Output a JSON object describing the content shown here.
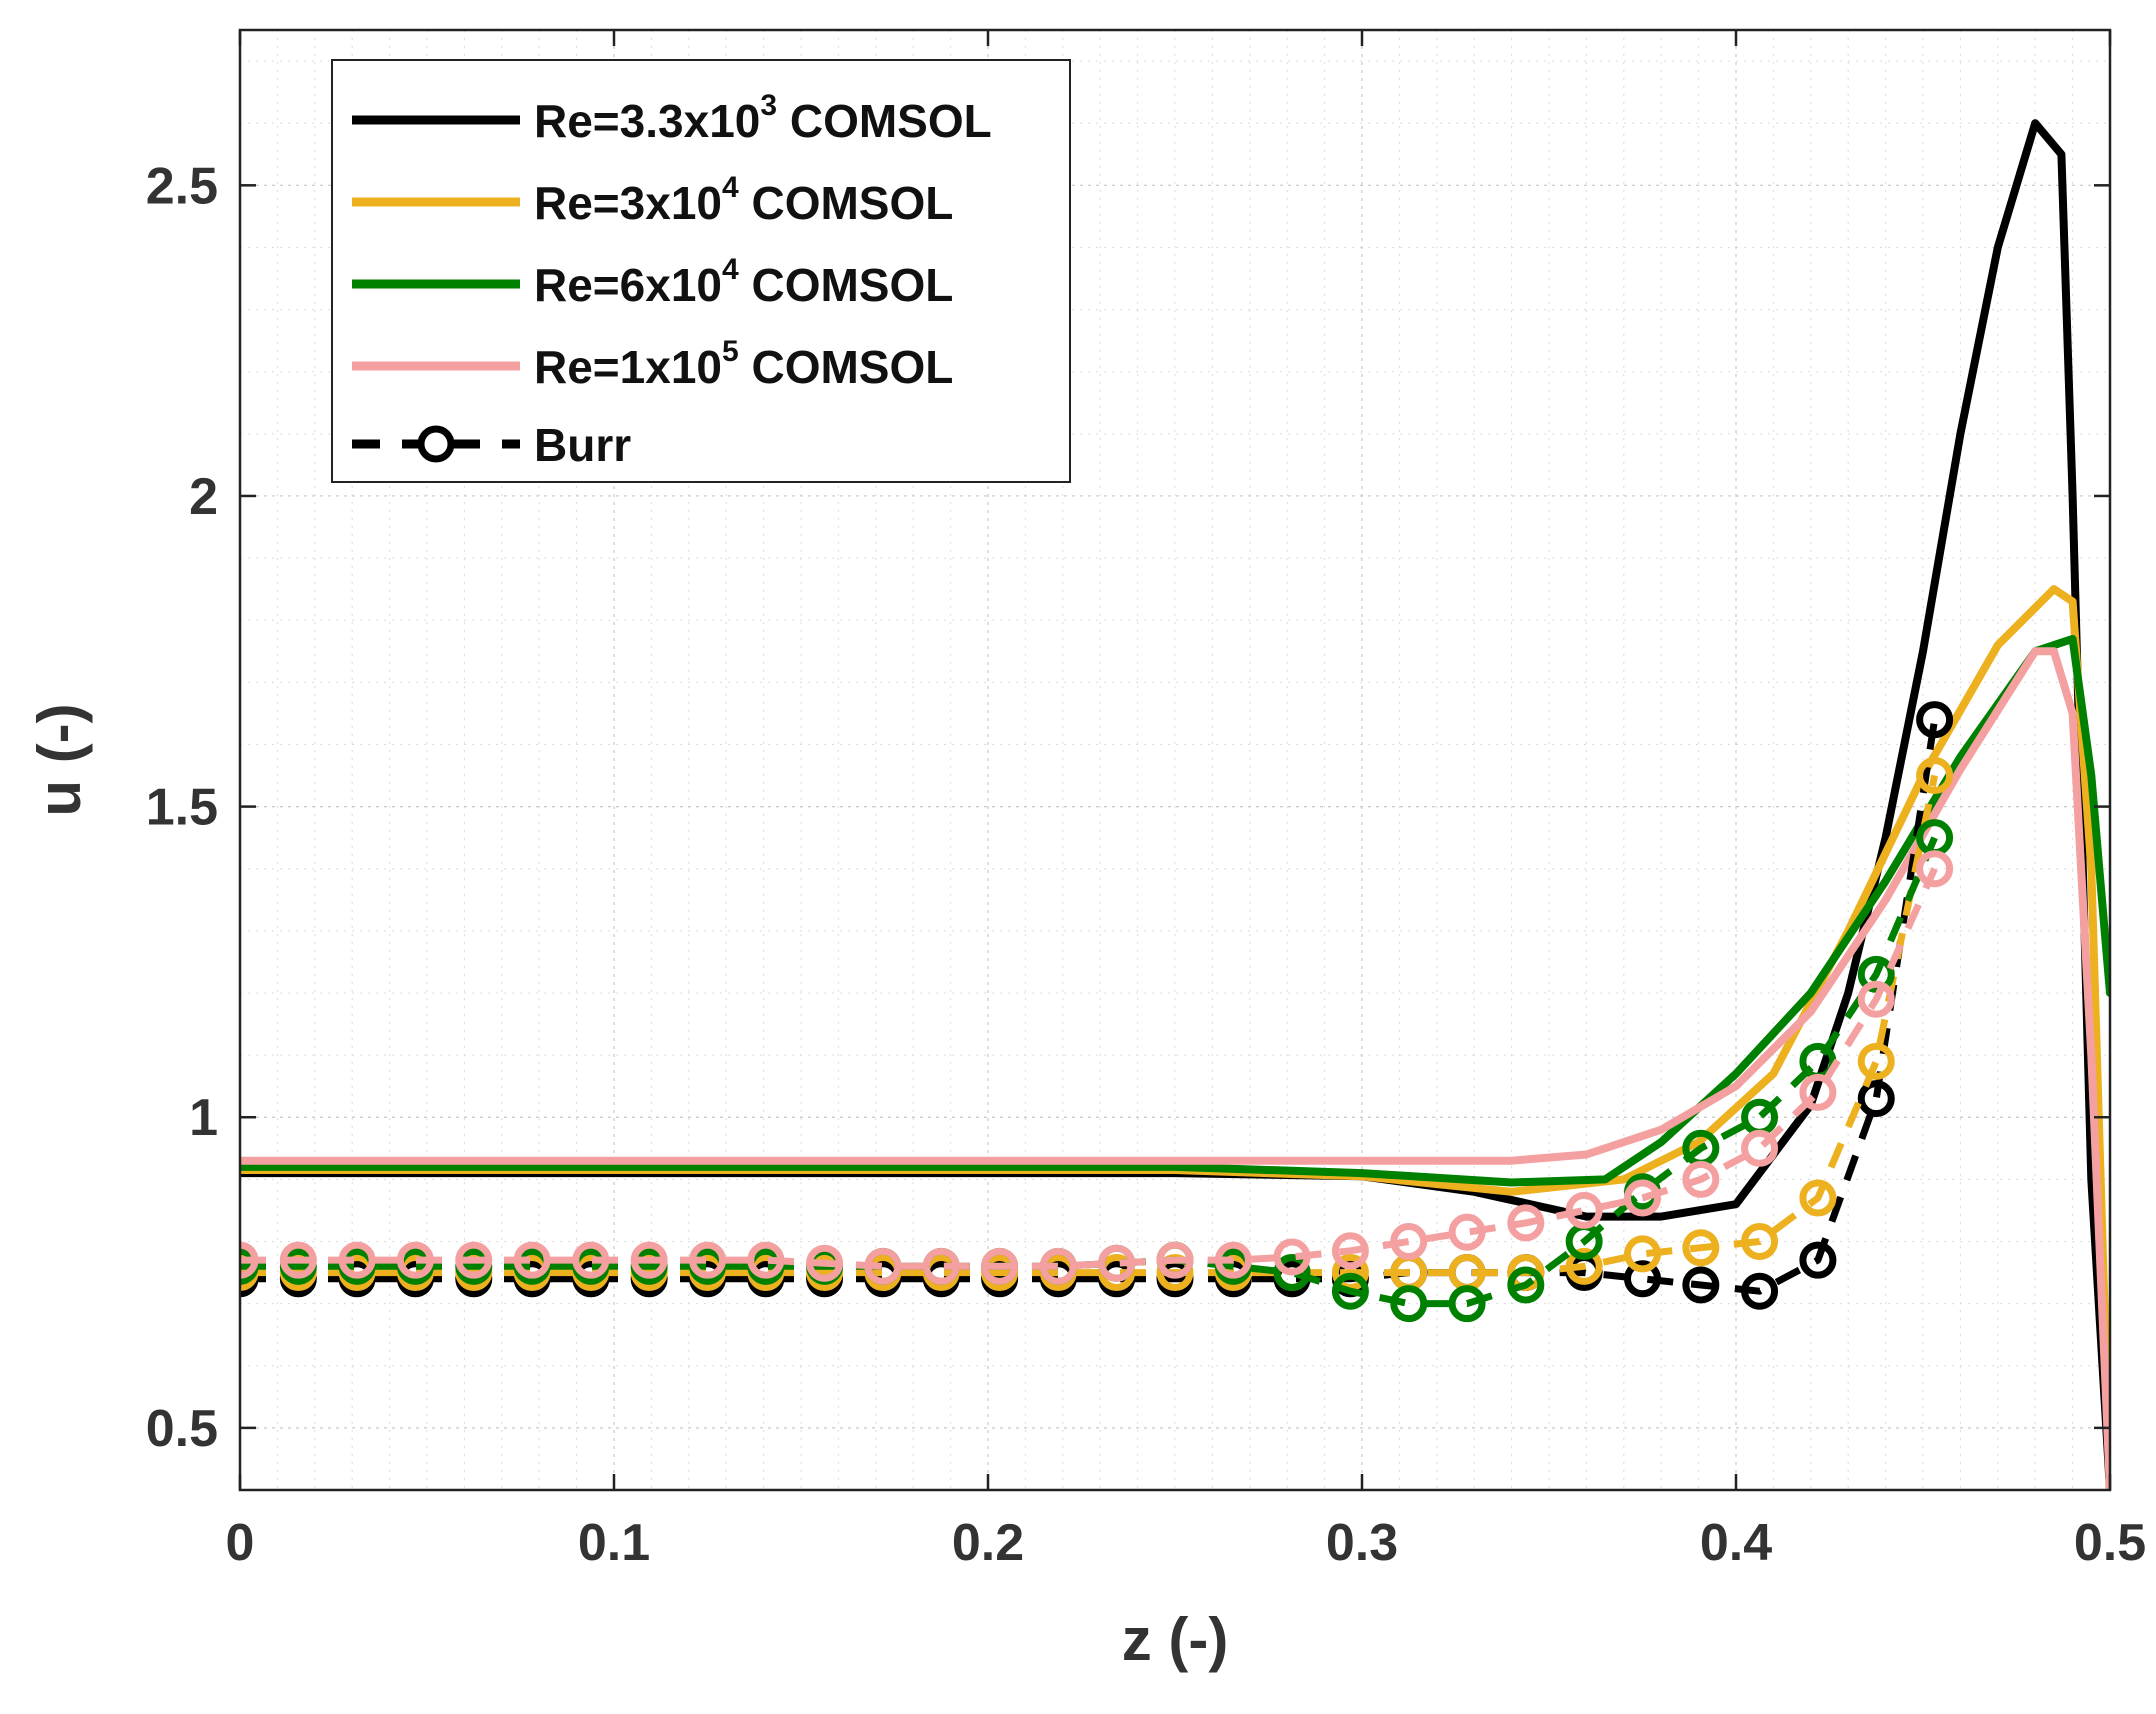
{
  "chart_data": {
    "type": "line",
    "xlabel": "z (-)",
    "ylabel": "u (-)",
    "xlim": [
      0,
      0.5
    ],
    "ylim": [
      0.4,
      2.75
    ],
    "grid": true,
    "legend_position": "top-left",
    "x_ticks": [
      0,
      0.1,
      0.2,
      0.3,
      0.4,
      0.5
    ],
    "x_tick_labels": [
      "0",
      "0.1",
      "0.2",
      "0.3",
      "0.4",
      "0.5"
    ],
    "y_ticks": [
      0.5,
      1,
      1.5,
      2,
      2.5
    ],
    "y_tick_labels": [
      "0.5",
      "1",
      "1.5",
      "2",
      "2.5"
    ],
    "series": [
      {
        "name": "Re=3.3x10^3 COMSOL",
        "legend": {
          "prefix": "Re=3.3x10",
          "sup": "3",
          "suffix": " COMSOL"
        },
        "color": "#000000",
        "style": "solid",
        "x": [
          0,
          0.05,
          0.1,
          0.15,
          0.2,
          0.25,
          0.3,
          0.33,
          0.36,
          0.38,
          0.4,
          0.42,
          0.43,
          0.44,
          0.45,
          0.46,
          0.47,
          0.48,
          0.487,
          0.49,
          0.495,
          0.5
        ],
        "y": [
          0.91,
          0.91,
          0.91,
          0.91,
          0.91,
          0.91,
          0.905,
          0.88,
          0.84,
          0.84,
          0.86,
          1.02,
          1.2,
          1.45,
          1.75,
          2.1,
          2.4,
          2.6,
          2.55,
          2.0,
          0.9,
          0.4
        ]
      },
      {
        "name": "Re=3x10^4 COMSOL",
        "legend": {
          "prefix": "Re=3x10",
          "sup": "4",
          "suffix": " COMSOL"
        },
        "color": "#EDB120",
        "style": "solid",
        "x": [
          0,
          0.05,
          0.1,
          0.15,
          0.2,
          0.25,
          0.3,
          0.34,
          0.37,
          0.39,
          0.41,
          0.43,
          0.45,
          0.47,
          0.485,
          0.49,
          0.495,
          0.5
        ],
        "y": [
          0.915,
          0.915,
          0.915,
          0.915,
          0.915,
          0.915,
          0.905,
          0.88,
          0.9,
          0.96,
          1.07,
          1.3,
          1.55,
          1.76,
          1.85,
          1.83,
          1.4,
          0.4
        ]
      },
      {
        "name": "Re=6x10^4 COMSOL",
        "legend": {
          "prefix": "Re=6x10",
          "sup": "4",
          "suffix": " COMSOL"
        },
        "color": "#008000",
        "style": "solid",
        "x": [
          0,
          0.05,
          0.1,
          0.15,
          0.2,
          0.25,
          0.3,
          0.34,
          0.365,
          0.38,
          0.4,
          0.42,
          0.44,
          0.46,
          0.48,
          0.49,
          0.495,
          0.5
        ],
        "y": [
          0.92,
          0.92,
          0.92,
          0.92,
          0.92,
          0.92,
          0.91,
          0.895,
          0.9,
          0.96,
          1.07,
          1.2,
          1.38,
          1.58,
          1.75,
          1.77,
          1.55,
          1.2
        ]
      },
      {
        "name": "Re=1x10^5 COMSOL",
        "legend": {
          "prefix": "Re=1x10",
          "sup": "5",
          "suffix": " COMSOL"
        },
        "color": "#F4A0A0",
        "style": "solid",
        "x": [
          0,
          0.05,
          0.1,
          0.15,
          0.2,
          0.25,
          0.3,
          0.34,
          0.36,
          0.38,
          0.4,
          0.42,
          0.44,
          0.46,
          0.48,
          0.485,
          0.49,
          0.495,
          0.5
        ],
        "y": [
          0.93,
          0.93,
          0.93,
          0.93,
          0.93,
          0.93,
          0.93,
          0.93,
          0.94,
          0.98,
          1.05,
          1.17,
          1.35,
          1.56,
          1.75,
          1.75,
          1.65,
          1.1,
          0.4
        ]
      }
    ],
    "experimental": {
      "name": "Burr",
      "legend_color": "#000000",
      "style": "dashed-circle",
      "sets": [
        {
          "color": "#000000",
          "x": [
            0,
            0.0156,
            0.0313,
            0.0469,
            0.0625,
            0.0781,
            0.0938,
            0.1094,
            0.125,
            0.1406,
            0.1563,
            0.1719,
            0.1875,
            0.2031,
            0.2188,
            0.2344,
            0.25,
            0.2656,
            0.2813,
            0.2969,
            0.3125,
            0.3281,
            0.3438,
            0.3594,
            0.375,
            0.3906,
            0.4063,
            0.4219,
            0.4375,
            0.4531
          ],
          "y": [
            0.74,
            0.74,
            0.74,
            0.74,
            0.74,
            0.74,
            0.74,
            0.74,
            0.74,
            0.74,
            0.74,
            0.74,
            0.74,
            0.74,
            0.74,
            0.74,
            0.74,
            0.74,
            0.74,
            0.74,
            0.75,
            0.75,
            0.75,
            0.75,
            0.74,
            0.73,
            0.72,
            0.77,
            1.03,
            1.64
          ]
        },
        {
          "color": "#EDB120",
          "x": [
            0,
            0.0156,
            0.0313,
            0.0469,
            0.0625,
            0.0781,
            0.0938,
            0.1094,
            0.125,
            0.1406,
            0.1563,
            0.1719,
            0.1875,
            0.2031,
            0.2188,
            0.2344,
            0.25,
            0.2656,
            0.2813,
            0.2969,
            0.3125,
            0.3281,
            0.3438,
            0.3594,
            0.375,
            0.3906,
            0.4063,
            0.4219,
            0.4375,
            0.4531
          ],
          "y": [
            0.75,
            0.75,
            0.75,
            0.75,
            0.75,
            0.75,
            0.75,
            0.75,
            0.75,
            0.75,
            0.75,
            0.75,
            0.75,
            0.75,
            0.75,
            0.75,
            0.75,
            0.75,
            0.75,
            0.75,
            0.75,
            0.75,
            0.75,
            0.76,
            0.78,
            0.79,
            0.8,
            0.87,
            1.09,
            1.55
          ]
        },
        {
          "color": "#008000",
          "x": [
            0,
            0.0156,
            0.0313,
            0.0469,
            0.0625,
            0.0781,
            0.0938,
            0.1094,
            0.125,
            0.1406,
            0.1563,
            0.1719,
            0.1875,
            0.2031,
            0.2188,
            0.2344,
            0.25,
            0.2656,
            0.2813,
            0.2969,
            0.3125,
            0.3281,
            0.3438,
            0.3594,
            0.375,
            0.3906,
            0.4063,
            0.4219,
            0.4375,
            0.4531
          ],
          "y": [
            0.76,
            0.76,
            0.76,
            0.76,
            0.76,
            0.76,
            0.76,
            0.76,
            0.76,
            0.76,
            0.76,
            0.76,
            0.76,
            0.76,
            0.76,
            0.765,
            0.77,
            0.76,
            0.75,
            0.72,
            0.7,
            0.7,
            0.73,
            0.8,
            0.88,
            0.95,
            1.0,
            1.09,
            1.23,
            1.45
          ]
        },
        {
          "color": "#F4A0A0",
          "x": [
            0,
            0.0156,
            0.0313,
            0.0469,
            0.0625,
            0.0781,
            0.0938,
            0.1094,
            0.125,
            0.1406,
            0.1563,
            0.1719,
            0.1875,
            0.2031,
            0.2188,
            0.2344,
            0.25,
            0.2656,
            0.2813,
            0.2969,
            0.3125,
            0.3281,
            0.3438,
            0.3594,
            0.375,
            0.3906,
            0.4063,
            0.4219,
            0.4375,
            0.4531
          ],
          "y": [
            0.77,
            0.77,
            0.77,
            0.77,
            0.77,
            0.77,
            0.77,
            0.77,
            0.77,
            0.77,
            0.765,
            0.76,
            0.76,
            0.76,
            0.76,
            0.765,
            0.77,
            0.77,
            0.775,
            0.785,
            0.8,
            0.815,
            0.83,
            0.85,
            0.87,
            0.9,
            0.95,
            1.04,
            1.19,
            1.4
          ]
        }
      ]
    }
  }
}
